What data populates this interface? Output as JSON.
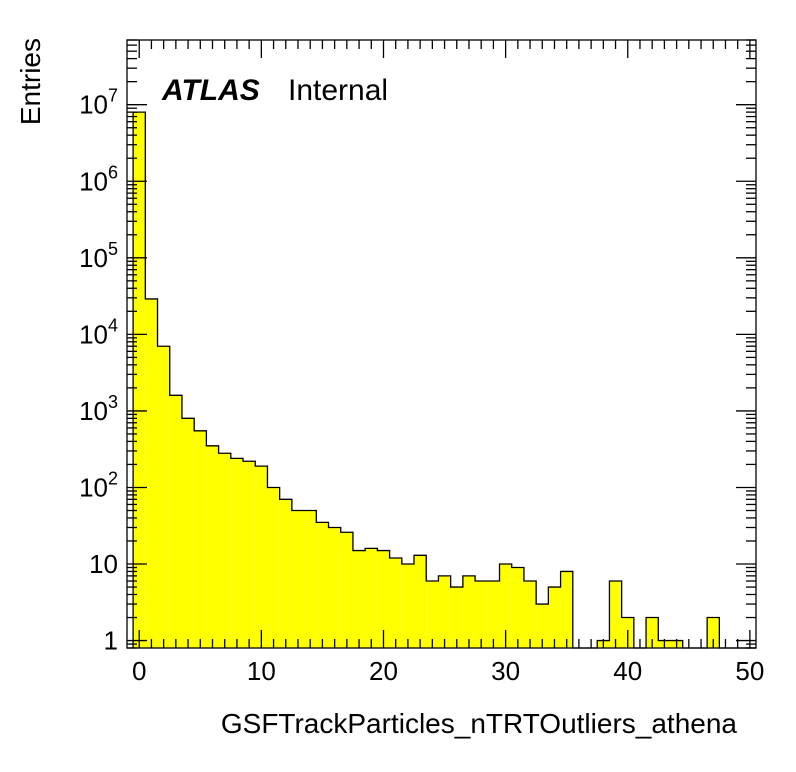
{
  "chart_data": {
    "type": "bar",
    "title": "",
    "xlabel": "GSFTrackParticles_nTRTOutliers_athena",
    "ylabel": "Entries",
    "yscale": "log",
    "xlim": [
      -1,
      50.5
    ],
    "ylim": [
      0.8,
      70000000
    ],
    "grid": false,
    "fill_color": "#ffff00",
    "line_color": "#000000",
    "bin_width": 1,
    "x_tick_labels": [
      "0",
      "10",
      "20",
      "30",
      "40",
      "50"
    ],
    "y_tick_labels": [
      {
        "value": 1,
        "base": "1",
        "exp": ""
      },
      {
        "value": 10,
        "base": "10",
        "exp": ""
      },
      {
        "value": 100,
        "base": "10",
        "exp": "2"
      },
      {
        "value": 1000,
        "base": "10",
        "exp": "3"
      },
      {
        "value": 10000,
        "base": "10",
        "exp": "4"
      },
      {
        "value": 100000,
        "base": "10",
        "exp": "5"
      },
      {
        "value": 1000000,
        "base": "10",
        "exp": "6"
      },
      {
        "value": 10000000,
        "base": "10",
        "exp": "7"
      }
    ],
    "bins": {
      "x": [
        -0.5,
        0.5,
        1.5,
        2.5,
        3.5,
        4.5,
        5.5,
        6.5,
        7.5,
        8.5,
        9.5,
        10.5,
        11.5,
        12.5,
        13.5,
        14.5,
        15.5,
        16.5,
        17.5,
        18.5,
        19.5,
        20.5,
        21.5,
        22.5,
        23.5,
        24.5,
        25.5,
        26.5,
        27.5,
        28.5,
        29.5,
        30.5,
        31.5,
        32.5,
        33.5,
        34.5,
        35.5,
        36.5,
        37.5,
        38.5,
        39.5,
        40.5,
        41.5,
        42.5,
        43.5,
        44.5,
        45.5,
        46.5,
        47.5,
        48.5,
        49.5
      ],
      "values": [
        8000000,
        29000,
        7000,
        1600,
        800,
        550,
        350,
        280,
        240,
        220,
        190,
        100,
        70,
        50,
        50,
        35,
        30,
        26,
        15,
        16,
        15,
        12,
        10,
        13,
        6,
        7,
        5,
        7,
        6,
        6,
        10,
        9,
        6,
        3,
        5,
        8,
        0,
        0,
        1,
        6,
        2,
        0,
        2,
        1,
        1,
        0,
        0,
        2,
        0,
        0,
        0
      ]
    },
    "annotations": [
      {
        "text": "ATLAS",
        "style": "bold-italic"
      },
      {
        "text": "Internal",
        "style": "normal"
      }
    ]
  }
}
